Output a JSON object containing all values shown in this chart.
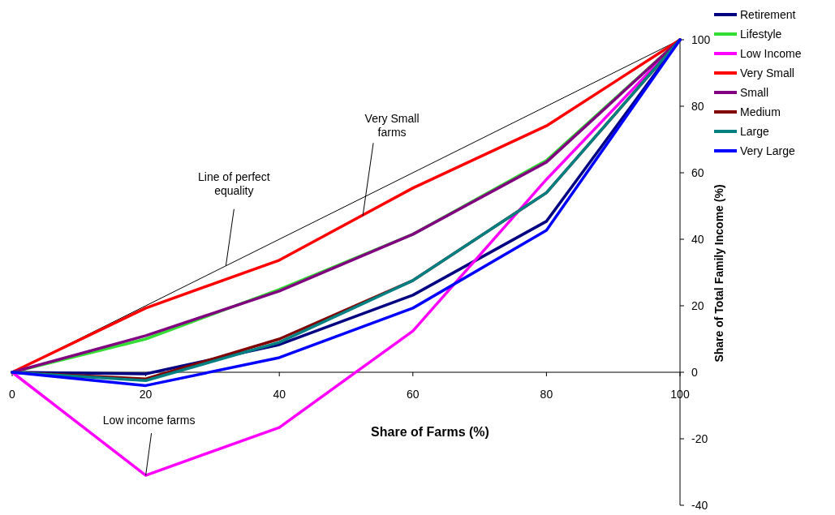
{
  "chart_data": {
    "type": "line",
    "xlabel": "Share of Farms (%)",
    "ylabel": "Share of Total Family Income (%)",
    "x": [
      0,
      20,
      40,
      60,
      80,
      100
    ],
    "xlim": [
      0,
      100
    ],
    "xticks": [
      0,
      20,
      40,
      60,
      80,
      100
    ],
    "ylim": [
      -40,
      100
    ],
    "yticks": [
      -40,
      -20,
      0,
      20,
      40,
      60,
      80,
      100
    ],
    "grid": false,
    "legend": "top right",
    "marker": "none",
    "line_style": "solid",
    "series": [
      {
        "color": "#000000",
        "x": [
          0,
          100
        ],
        "values": [
          0,
          100
        ]
      },
      {
        "name": "Retirement",
        "color": "#000080",
        "values": [
          0,
          -0.5,
          8.3,
          23.2,
          45.4,
          100
        ]
      },
      {
        "name": "Lifestyle",
        "color": "#33dd33",
        "values": [
          0,
          10,
          24.9,
          41.5,
          63.7,
          100
        ]
      },
      {
        "name": "Low Income",
        "color": "#ff00ff",
        "values": [
          0,
          -31,
          -16.6,
          12.4,
          58,
          100
        ]
      },
      {
        "name": "Very Small",
        "color": "#ff0000",
        "values": [
          0,
          19.3,
          33.7,
          55.4,
          74.1,
          100
        ]
      },
      {
        "name": "Small",
        "color": "#800080",
        "values": [
          0,
          11,
          24.4,
          41.5,
          63.2,
          100
        ]
      },
      {
        "name": "Medium",
        "color": "#800000",
        "values": [
          0,
          -2,
          10,
          27.6,
          54,
          100
        ]
      },
      {
        "name": "Large",
        "color": "#008080",
        "values": [
          0,
          -2.5,
          9,
          27.6,
          54,
          100
        ]
      },
      {
        "name": "Very Large",
        "color": "#0000ff",
        "values": [
          0,
          -4,
          4.4,
          19.3,
          42.7,
          100
        ]
      }
    ],
    "annotations": [
      {
        "text": "Line of perfect equality",
        "x": 32,
        "y": 32
      },
      {
        "text": "Very Small farms",
        "x": 52.5,
        "y": 47
      },
      {
        "text": "Low income farms",
        "x": 20,
        "y": -31
      }
    ]
  }
}
